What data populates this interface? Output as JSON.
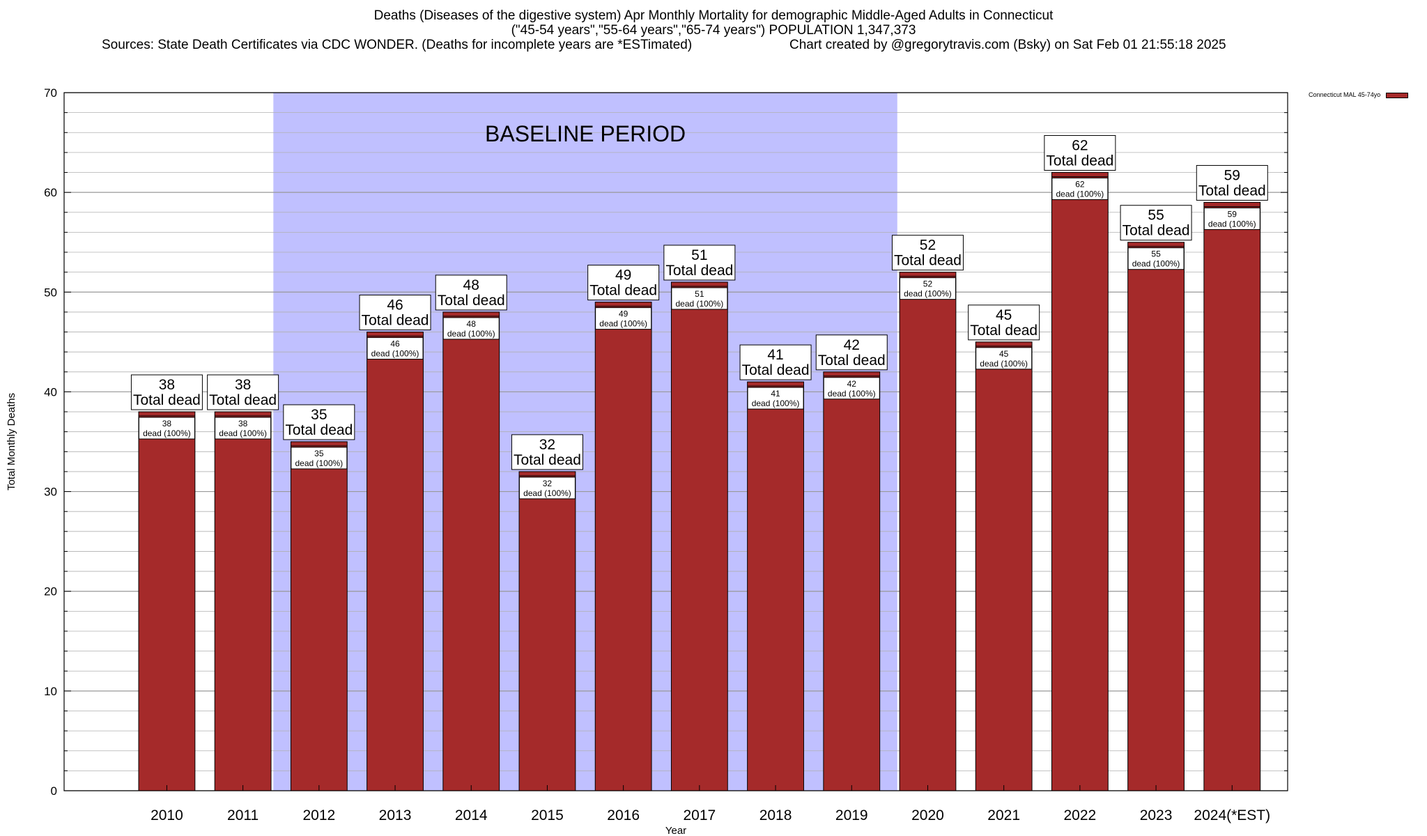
{
  "header": {
    "title": "Deaths (Diseases of the digestive system) Apr Monthly Mortality for demographic Middle-Aged Adults in Connecticut",
    "subtitle": "(\"45-54 years\",\"55-64 years\",\"65-74 years\") POPULATION 1,347,373",
    "sources": "Sources: State Death Certificates via CDC WONDER. (Deaths for incomplete years are *ESTimated)",
    "credit": "Chart created by @gregorytravis.com (Bsky) on Sat Feb 01 21:55:18 2025"
  },
  "legend": {
    "label": "Connecticut MAL 45-74yo"
  },
  "chart_data": {
    "type": "bar",
    "categories": [
      "2010",
      "2011",
      "2012",
      "2013",
      "2014",
      "2015",
      "2016",
      "2017",
      "2018",
      "2019",
      "2020",
      "2021",
      "2022",
      "2023",
      "2024(*EST)"
    ],
    "series": [
      {
        "name": "Connecticut MAL 45-74yo",
        "values": [
          38,
          38,
          35,
          46,
          48,
          32,
          49,
          51,
          41,
          42,
          52,
          45,
          62,
          55,
          59
        ]
      }
    ],
    "xlabel": "Year",
    "ylabel": "Total Monthly Deaths",
    "ylim": [
      0,
      70
    ],
    "y_ticks": [
      0,
      10,
      20,
      30,
      40,
      50,
      60,
      70
    ],
    "grid": true,
    "total_label_suffix": "Total dead",
    "inner_label_suffix": "dead (100%)",
    "shaded_region": {
      "label": "BASELINE PERIOD",
      "from": "2012",
      "to": "2019"
    },
    "colors": {
      "bar": "#a52a2a",
      "shade": "#c0c0ff",
      "grid": "#b0b0b0"
    }
  }
}
